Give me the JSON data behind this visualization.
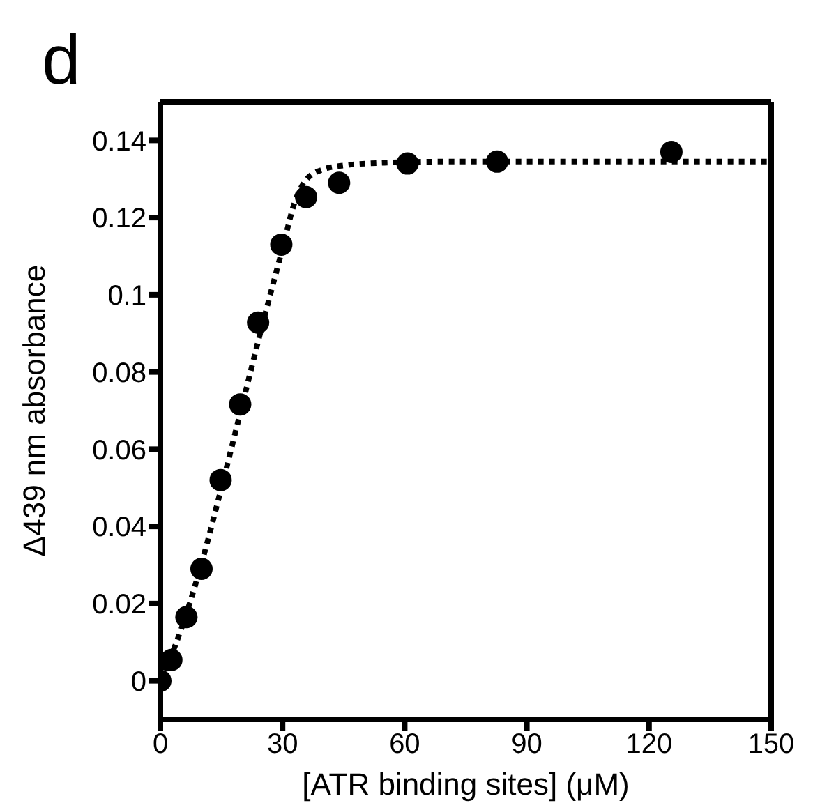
{
  "chart_data": {
    "type": "scatter",
    "xlabel": "[ATR binding sites] (μM)",
    "ylabel": "Δ439 nm absorbance",
    "annotations": [
      "d"
    ],
    "xlim": [
      0,
      150
    ],
    "xticks": [
      0,
      30,
      60,
      90,
      120,
      150
    ],
    "ylim": [
      -0.01,
      0.15
    ],
    "yticks": [
      0,
      0.02,
      0.04,
      0.06,
      0.08,
      0.1,
      0.12,
      0.14
    ],
    "grid": false,
    "legend": false,
    "series": [
      {
        "color": "#000000",
        "marker": "circle",
        "x": [
          0,
          2.7,
          6.4,
          10.1,
          14.8,
          19.6,
          24,
          29.7,
          35.8,
          43.9,
          60.7,
          82.7,
          125.5
        ],
        "values": [
          0,
          0.0054,
          0.0165,
          0.029,
          0.052,
          0.0716,
          0.0928,
          0.113,
          0.1253,
          0.129,
          0.134,
          0.1345,
          0.137
        ]
      },
      {
        "type": "line",
        "color": "#000000",
        "marker": "none",
        "line_style": "dotted",
        "x": [
          0,
          5,
          10,
          15,
          20,
          25,
          30,
          33,
          36,
          40,
          45,
          55,
          70,
          150
        ],
        "values": [
          0,
          0.013,
          0.03,
          0.05,
          0.071,
          0.092,
          0.112,
          0.124,
          0.13,
          0.1325,
          0.1335,
          0.1342,
          0.1345,
          0.1345
        ]
      }
    ]
  }
}
